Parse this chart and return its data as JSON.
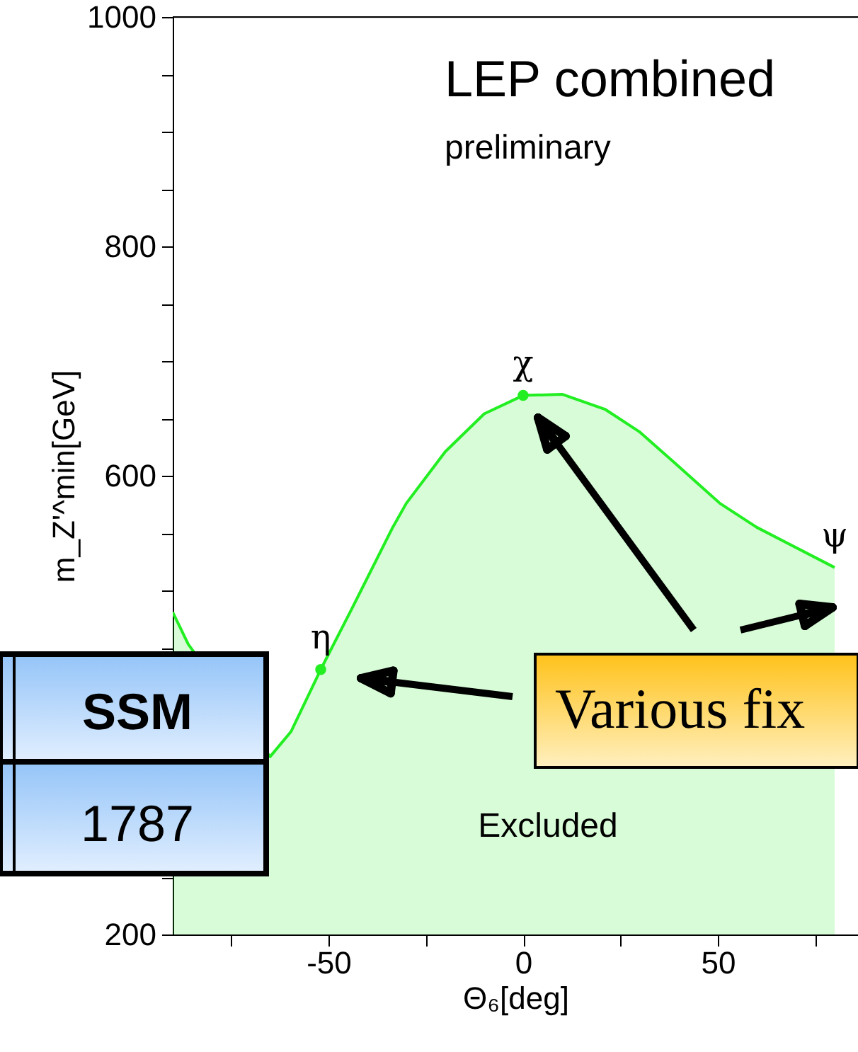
{
  "chart_data": {
    "type": "area",
    "title": "LEP combined",
    "subtitle": "preliminary",
    "xlabel": "Θ₆[deg]",
    "ylabel": "m_Z'^min[GeV]",
    "series": [
      {
        "color": "#22ee22",
        "x": [
          -90,
          -86,
          -65,
          -59.6,
          -52,
          -44,
          -33.5,
          -30,
          -20,
          -10,
          0,
          10,
          21,
          30,
          39,
          50.5,
          60,
          80
        ],
        "values": [
          481,
          453,
          355,
          377,
          431,
          484,
          555,
          576,
          621,
          654,
          670,
          671,
          658,
          638,
          611,
          576,
          555,
          520
        ]
      }
    ],
    "xlim": [
      -90,
      86
    ],
    "ylim": [
      200,
      1000
    ],
    "xticks": [
      {
        "value": -75,
        "label": null
      },
      -50,
      {
        "value": -25,
        "label": null
      },
      0,
      {
        "value": 25,
        "label": null
      },
      50,
      {
        "value": 75,
        "label": null
      }
    ],
    "yticks": [
      200,
      {
        "value": 250,
        "label": null
      },
      {
        "value": 300,
        "label": null
      },
      {
        "value": 350,
        "label": null
      },
      {
        "value": 400,
        "label": null
      },
      {
        "value": 450,
        "label": null
      },
      {
        "value": 500,
        "label": null
      },
      {
        "value": 550,
        "label": null
      },
      600,
      {
        "value": 650,
        "label": null
      },
      {
        "value": 700,
        "label": null
      },
      {
        "value": 750,
        "label": null
      },
      800,
      {
        "value": 850,
        "label": null
      },
      {
        "value": 900,
        "label": null
      },
      {
        "value": 950,
        "label": null
      },
      1000
    ],
    "grid": false,
    "annotations": [
      {
        "text": "η",
        "x": -52,
        "y": 431
      },
      {
        "text": "χ",
        "x": 0,
        "y": 670
      },
      {
        "text": "ψ",
        "x": 80,
        "y": 520
      },
      "Excluded",
      "SSM",
      "1787",
      "Various fix"
    ]
  }
}
